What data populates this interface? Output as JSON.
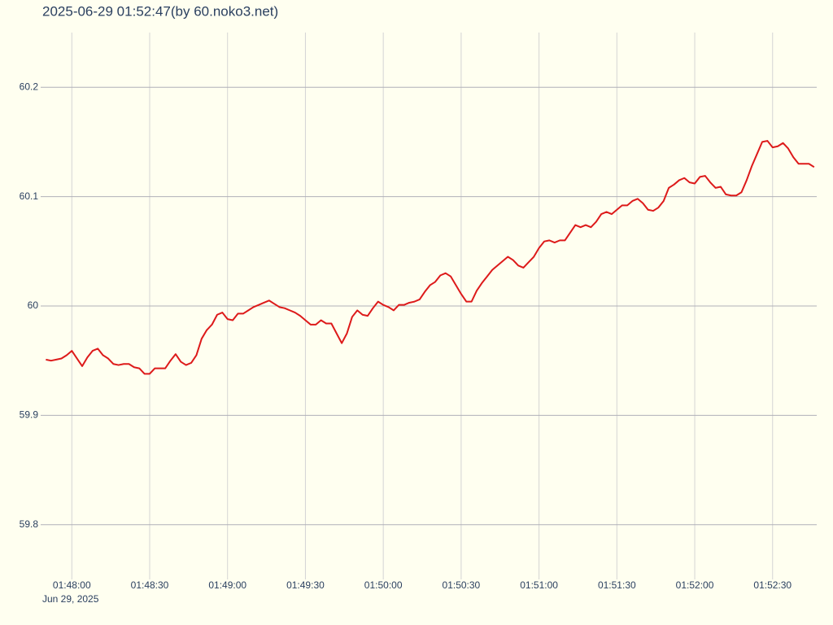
{
  "chart_data": {
    "type": "line",
    "title": "2025-06-29 01:52:47(by 60.noko3.net)",
    "x_date_label": "Jun 29, 2025",
    "x": [
      "2025-06-29 01:47:50",
      "2025-06-29 01:47:52",
      "2025-06-29 01:47:54",
      "2025-06-29 01:47:56",
      "2025-06-29 01:47:58",
      "2025-06-29 01:48:00",
      "2025-06-29 01:48:02",
      "2025-06-29 01:48:04",
      "2025-06-29 01:48:06",
      "2025-06-29 01:48:08",
      "2025-06-29 01:48:10",
      "2025-06-29 01:48:12",
      "2025-06-29 01:48:14",
      "2025-06-29 01:48:16",
      "2025-06-29 01:48:18",
      "2025-06-29 01:48:20",
      "2025-06-29 01:48:22",
      "2025-06-29 01:48:24",
      "2025-06-29 01:48:26",
      "2025-06-29 01:48:28",
      "2025-06-29 01:48:30",
      "2025-06-29 01:48:32",
      "2025-06-29 01:48:34",
      "2025-06-29 01:48:36",
      "2025-06-29 01:48:38",
      "2025-06-29 01:48:40",
      "2025-06-29 01:48:42",
      "2025-06-29 01:48:44",
      "2025-06-29 01:48:46",
      "2025-06-29 01:48:48",
      "2025-06-29 01:48:50",
      "2025-06-29 01:48:52",
      "2025-06-29 01:48:54",
      "2025-06-29 01:48:56",
      "2025-06-29 01:48:58",
      "2025-06-29 01:49:00",
      "2025-06-29 01:49:02",
      "2025-06-29 01:49:04",
      "2025-06-29 01:49:06",
      "2025-06-29 01:49:08",
      "2025-06-29 01:49:10",
      "2025-06-29 01:49:12",
      "2025-06-29 01:49:14",
      "2025-06-29 01:49:16",
      "2025-06-29 01:49:18",
      "2025-06-29 01:49:20",
      "2025-06-29 01:49:22",
      "2025-06-29 01:49:24",
      "2025-06-29 01:49:26",
      "2025-06-29 01:49:28",
      "2025-06-29 01:49:30",
      "2025-06-29 01:49:32",
      "2025-06-29 01:49:34",
      "2025-06-29 01:49:36",
      "2025-06-29 01:49:38",
      "2025-06-29 01:49:40",
      "2025-06-29 01:49:42",
      "2025-06-29 01:49:44",
      "2025-06-29 01:49:46",
      "2025-06-29 01:49:48",
      "2025-06-29 01:49:50",
      "2025-06-29 01:49:52",
      "2025-06-29 01:49:54",
      "2025-06-29 01:49:56",
      "2025-06-29 01:49:58",
      "2025-06-29 01:50:00",
      "2025-06-29 01:50:02",
      "2025-06-29 01:50:04",
      "2025-06-29 01:50:06",
      "2025-06-29 01:50:08",
      "2025-06-29 01:50:10",
      "2025-06-29 01:50:12",
      "2025-06-29 01:50:14",
      "2025-06-29 01:50:16",
      "2025-06-29 01:50:18",
      "2025-06-29 01:50:20",
      "2025-06-29 01:50:22",
      "2025-06-29 01:50:24",
      "2025-06-29 01:50:26",
      "2025-06-29 01:50:28",
      "2025-06-29 01:50:30",
      "2025-06-29 01:50:32",
      "2025-06-29 01:50:34",
      "2025-06-29 01:50:36",
      "2025-06-29 01:50:38",
      "2025-06-29 01:50:40",
      "2025-06-29 01:50:42",
      "2025-06-29 01:50:44",
      "2025-06-29 01:50:46",
      "2025-06-29 01:50:48",
      "2025-06-29 01:50:50",
      "2025-06-29 01:50:52",
      "2025-06-29 01:50:54",
      "2025-06-29 01:50:56",
      "2025-06-29 01:50:58",
      "2025-06-29 01:51:00",
      "2025-06-29 01:51:02",
      "2025-06-29 01:51:04",
      "2025-06-29 01:51:06",
      "2025-06-29 01:51:08",
      "2025-06-29 01:51:10",
      "2025-06-29 01:51:12",
      "2025-06-29 01:51:14",
      "2025-06-29 01:51:16",
      "2025-06-29 01:51:18",
      "2025-06-29 01:51:20",
      "2025-06-29 01:51:22",
      "2025-06-29 01:51:24",
      "2025-06-29 01:51:26",
      "2025-06-29 01:51:28",
      "2025-06-29 01:51:30",
      "2025-06-29 01:51:32",
      "2025-06-29 01:51:34",
      "2025-06-29 01:51:36",
      "2025-06-29 01:51:38",
      "2025-06-29 01:51:40",
      "2025-06-29 01:51:42",
      "2025-06-29 01:51:44",
      "2025-06-29 01:51:46",
      "2025-06-29 01:51:48",
      "2025-06-29 01:51:50",
      "2025-06-29 01:51:52",
      "2025-06-29 01:51:54",
      "2025-06-29 01:51:56",
      "2025-06-29 01:51:58",
      "2025-06-29 01:52:00",
      "2025-06-29 01:52:02",
      "2025-06-29 01:52:04",
      "2025-06-29 01:52:06",
      "2025-06-29 01:52:08",
      "2025-06-29 01:52:10",
      "2025-06-29 01:52:12",
      "2025-06-29 01:52:14",
      "2025-06-29 01:52:16",
      "2025-06-29 01:52:18",
      "2025-06-29 01:52:20",
      "2025-06-29 01:52:22",
      "2025-06-29 01:52:24",
      "2025-06-29 01:52:26",
      "2025-06-29 01:52:28",
      "2025-06-29 01:52:30",
      "2025-06-29 01:52:32",
      "2025-06-29 01:52:34",
      "2025-06-29 01:52:36",
      "2025-06-29 01:52:38",
      "2025-06-29 01:52:40",
      "2025-06-29 01:52:42",
      "2025-06-29 01:52:44",
      "2025-06-29 01:52:46"
    ],
    "series": [
      {
        "color": "#dd1a1a",
        "values": [
          59.951,
          59.95,
          59.951,
          59.952,
          59.955,
          59.959,
          59.952,
          59.945,
          59.953,
          59.959,
          59.961,
          59.955,
          59.952,
          59.947,
          59.946,
          59.947,
          59.947,
          59.944,
          59.943,
          59.938,
          59.938,
          59.943,
          59.943,
          59.943,
          59.95,
          59.956,
          59.949,
          59.946,
          59.948,
          59.955,
          59.97,
          59.978,
          59.983,
          59.992,
          59.994,
          59.988,
          59.987,
          59.993,
          59.993,
          59.996,
          59.999,
          60.001,
          60.003,
          60.005,
          60.002,
          59.999,
          59.998,
          59.996,
          59.994,
          59.991,
          59.987,
          59.983,
          59.983,
          59.987,
          59.984,
          59.984,
          59.975,
          59.966,
          59.975,
          59.99,
          59.996,
          59.992,
          59.991,
          59.998,
          60.004,
          60.001,
          59.999,
          59.996,
          60.001,
          60.001,
          60.003,
          60.004,
          60.006,
          60.013,
          60.019,
          60.022,
          60.028,
          60.03,
          60.027,
          60.019,
          60.011,
          60.004,
          60.004,
          60.014,
          60.021,
          60.027,
          60.033,
          60.037,
          60.041,
          60.045,
          60.042,
          60.037,
          60.035,
          60.04,
          60.045,
          60.053,
          60.059,
          60.06,
          60.058,
          60.06,
          60.06,
          60.067,
          60.074,
          60.072,
          60.074,
          60.072,
          60.077,
          60.084,
          60.086,
          60.084,
          60.088,
          60.092,
          60.092,
          60.096,
          60.098,
          60.094,
          60.088,
          60.087,
          60.09,
          60.096,
          60.108,
          60.111,
          60.115,
          60.117,
          60.113,
          60.112,
          60.118,
          60.119,
          60.113,
          60.108,
          60.109,
          60.102,
          60.101,
          60.101,
          60.104,
          60.115,
          60.128,
          60.139,
          60.15,
          60.151,
          60.145,
          60.146,
          60.149,
          60.144,
          60.136,
          60.13,
          60.13,
          60.13,
          60.127
        ]
      }
    ],
    "xlim": [
      "2025-06-29 01:47:48",
      "2025-06-29 01:52:47"
    ],
    "xticks": [
      {
        "value": "2025-06-29 01:48:00",
        "label": "01:48:00"
      },
      {
        "value": "2025-06-29 01:48:30",
        "label": "01:48:30"
      },
      {
        "value": "2025-06-29 01:49:00",
        "label": "01:49:00"
      },
      {
        "value": "2025-06-29 01:49:30",
        "label": "01:49:30"
      },
      {
        "value": "2025-06-29 01:50:00",
        "label": "01:50:00"
      },
      {
        "value": "2025-06-29 01:50:30",
        "label": "01:50:30"
      },
      {
        "value": "2025-06-29 01:51:00",
        "label": "01:51:00"
      },
      {
        "value": "2025-06-29 01:51:30",
        "label": "01:51:30"
      },
      {
        "value": "2025-06-29 01:52:00",
        "label": "01:52:00"
      },
      {
        "value": "2025-06-29 01:52:30",
        "label": "01:52:30"
      }
    ],
    "ylim": [
      59.75,
      60.25
    ],
    "yticks": [
      59.8,
      59.9,
      60,
      60.1,
      60.2
    ],
    "grid": true
  }
}
